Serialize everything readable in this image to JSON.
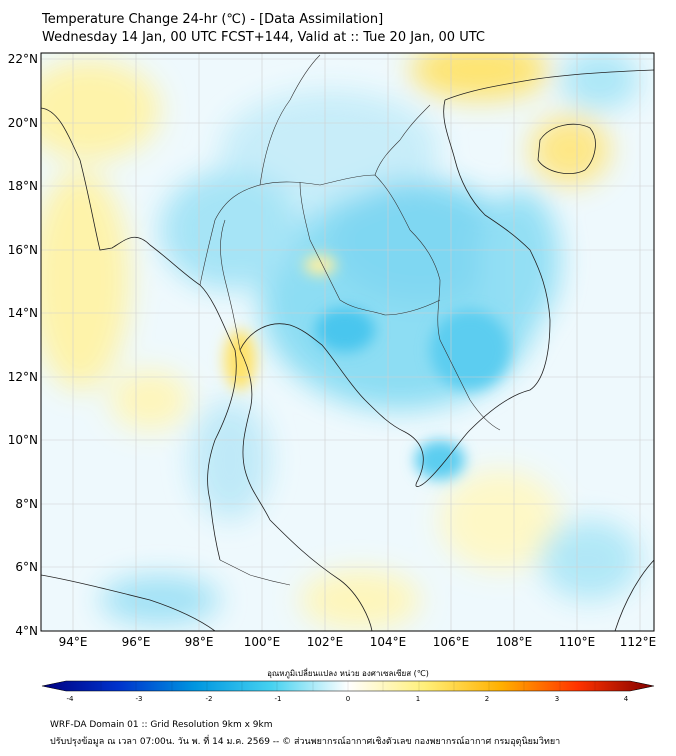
{
  "header": {
    "title": "Temperature Change 24-hr (℃) - [Data Assimilation]",
    "subtitle": "Wednesday 14 Jan, 00 UTC FCST+144, Valid at :: Tue 20 Jan, 00 UTC"
  },
  "map": {
    "lat_labels": [
      "22°N",
      "20°N",
      "18°N",
      "16°N",
      "14°N",
      "12°N",
      "10°N",
      "8°N",
      "6°N",
      "4°N"
    ],
    "lon_labels": [
      "94°E",
      "96°E",
      "98°E",
      "100°E",
      "102°E",
      "104°E",
      "106°E",
      "108°E",
      "110°E",
      "112°E"
    ],
    "grid": true,
    "field": "24-hr temperature change"
  },
  "colorbar": {
    "title": "อุณหภูมิเปลี่ยนแปลง หน่วย องศาเซลเซียส (℃)",
    "ticks": [
      "-4",
      "-3",
      "-2",
      "-1",
      "0",
      "1",
      "2",
      "3",
      "4"
    ],
    "colors": [
      "#00007f",
      "#0033cc",
      "#0096e0",
      "#46d2f0",
      "#ffffff",
      "#fff07a",
      "#ffb000",
      "#ff3300",
      "#7f0000"
    ]
  },
  "footer": {
    "line1": "WRF-DA Domain 01 :: Grid Resolution 9km x 9km",
    "line2": "ปรับปรุงข้อมูล ณ เวลา 07:00น. วัน พ. ที่ 14 ม.ค. 2569 -- © ส่วนพยากรณ์อากาศเชิงตัวเลข กองพยากรณ์อากาศ กรมอุตุนิยมวิทยา"
  }
}
